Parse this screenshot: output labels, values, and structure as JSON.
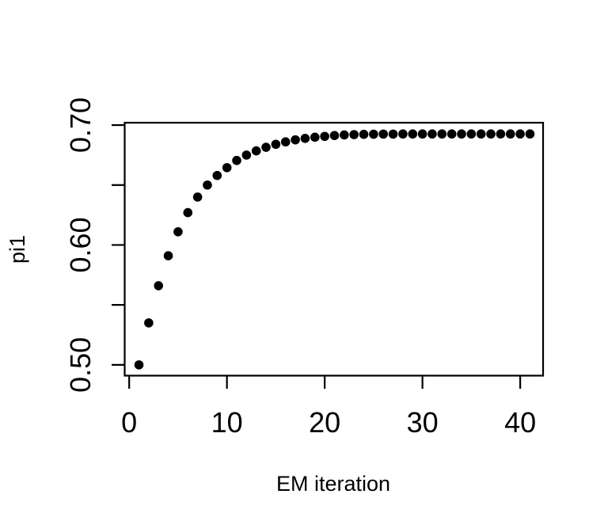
{
  "chart_data": {
    "type": "scatter",
    "title": "",
    "xlabel": "EM iteration",
    "ylabel": "pi1",
    "x": [
      1,
      2,
      3,
      4,
      5,
      6,
      7,
      8,
      9,
      10,
      11,
      12,
      13,
      14,
      15,
      16,
      17,
      18,
      19,
      20,
      21,
      22,
      23,
      24,
      25,
      26,
      27,
      28,
      29,
      30,
      31,
      32,
      33,
      34,
      35,
      36,
      37,
      38,
      39,
      40,
      41
    ],
    "y": [
      0.5,
      0.535,
      0.566,
      0.591,
      0.611,
      0.627,
      0.64,
      0.65,
      0.658,
      0.6645,
      0.6705,
      0.675,
      0.6785,
      0.6815,
      0.684,
      0.686,
      0.6877,
      0.6889,
      0.6899,
      0.6906,
      0.6913,
      0.6918,
      0.6921,
      0.6923,
      0.6924,
      0.6925,
      0.6925,
      0.6926,
      0.6926,
      0.6926,
      0.6926,
      0.6926,
      0.6926,
      0.6926,
      0.6926,
      0.6926,
      0.6926,
      0.6926,
      0.6926,
      0.6926,
      0.6926
    ],
    "xlim": [
      -0.46,
      42.34
    ],
    "ylim": [
      0.491,
      0.702
    ],
    "xticks": {
      "values": [
        0,
        10,
        20,
        30,
        40
      ],
      "labels": [
        "0",
        "10",
        "20",
        "30",
        "40"
      ]
    },
    "yticks": {
      "values": [
        0.5,
        0.55,
        0.6,
        0.65,
        0.7
      ],
      "labels": [
        "0.50",
        "",
        "0.60",
        "",
        "0.70"
      ]
    },
    "grid": false,
    "legend_position": "none",
    "marker": {
      "shape": "circle",
      "color": "#000000",
      "radius_px": 5.8
    },
    "frame_color": "#000000",
    "background_color": "#ffffff"
  }
}
